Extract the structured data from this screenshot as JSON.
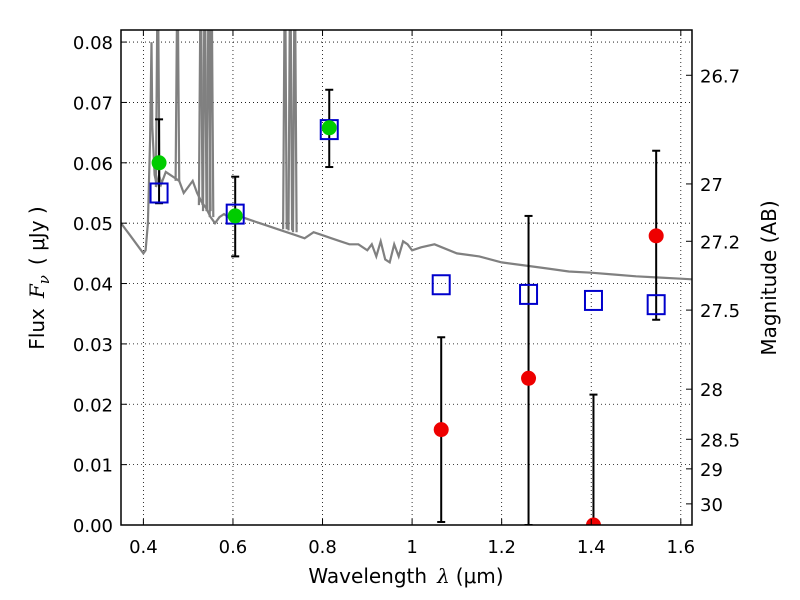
{
  "chart_data": {
    "type": "scatter",
    "xlabel": "Wavelength",
    "xlabel_symbol": "λ",
    "xlabel_unit": "(μm)",
    "ylabel": "Flux",
    "ylabel_symbol": "F",
    "ylabel_subscript": "ν",
    "ylabel_unit": "( μJy )",
    "y2label": "Magnitude (AB)",
    "xlim": [
      0.35,
      1.625
    ],
    "ylim": [
      0.0,
      0.082
    ],
    "x_ticks": [
      0.4,
      0.6,
      0.8,
      1.0,
      1.2,
      1.4,
      1.6
    ],
    "x_tick_labels": [
      "0.4",
      "0.6",
      "0.8",
      "1",
      "1.2",
      "1.4",
      "1.6"
    ],
    "y_ticks": [
      0.0,
      0.01,
      0.02,
      0.03,
      0.04,
      0.05,
      0.06,
      0.07,
      0.08
    ],
    "y_tick_labels": [
      "0.00",
      "0.01",
      "0.02",
      "0.03",
      "0.04",
      "0.05",
      "0.06",
      "0.07",
      "0.08"
    ],
    "y2_ticks": [
      26.7,
      27,
      27.2,
      27.5,
      28,
      28.5,
      29,
      30
    ],
    "y2_tick_labels": [
      "26.7",
      "27",
      "27.2",
      "27.5",
      "28",
      "28.5",
      "29",
      "30"
    ],
    "y2_tick_flux": [
      0.0745,
      0.0565,
      0.047,
      0.0356,
      0.0225,
      0.0142,
      0.0093,
      0.0035
    ],
    "grid": true,
    "series": [
      {
        "kind": "line",
        "color": "#808080",
        "x": [
          0.35,
          0.37,
          0.39,
          0.4,
          0.405,
          0.41,
          0.415,
          0.418,
          0.42,
          0.425,
          0.428,
          0.43,
          0.435,
          0.44,
          0.45,
          0.46,
          0.47,
          0.48,
          0.49,
          0.5,
          0.51,
          0.52,
          0.53,
          0.54,
          0.55,
          0.56,
          0.57,
          0.58,
          0.59,
          0.6,
          0.62,
          0.64,
          0.66,
          0.68,
          0.7,
          0.72,
          0.74,
          0.76,
          0.78,
          0.8,
          0.82,
          0.84,
          0.86,
          0.88,
          0.9,
          0.91,
          0.92,
          0.93,
          0.94,
          0.95,
          0.96,
          0.97,
          0.98,
          0.99,
          1.0,
          1.02,
          1.05,
          1.1,
          1.15,
          1.2,
          1.25,
          1.3,
          1.35,
          1.4,
          1.45,
          1.5,
          1.55,
          1.6,
          1.625
        ],
        "y": [
          0.05,
          0.048,
          0.046,
          0.045,
          0.0455,
          0.05,
          0.064,
          0.08,
          0.066,
          0.058,
          0.057,
          0.0565,
          0.058,
          0.0565,
          0.0585,
          0.058,
          0.0575,
          0.057,
          0.055,
          0.056,
          0.057,
          0.055,
          0.0535,
          0.0525,
          0.051,
          0.05,
          0.051,
          0.0515,
          0.051,
          0.052,
          0.051,
          0.0505,
          0.05,
          0.0495,
          0.049,
          0.0485,
          0.048,
          0.0475,
          0.0485,
          0.048,
          0.0475,
          0.047,
          0.0465,
          0.0465,
          0.0455,
          0.0465,
          0.0445,
          0.047,
          0.044,
          0.0435,
          0.0465,
          0.0445,
          0.047,
          0.0465,
          0.0455,
          0.046,
          0.0465,
          0.045,
          0.0445,
          0.0435,
          0.043,
          0.0425,
          0.042,
          0.0418,
          0.0415,
          0.0412,
          0.041,
          0.0408,
          0.0407
        ]
      },
      {
        "kind": "spikes",
        "color": "#808080",
        "x": [
          0.432,
          0.476,
          0.528,
          0.537,
          0.546,
          0.552,
          0.716,
          0.728,
          0.738
        ],
        "peak": [
          0.082,
          0.082,
          0.082,
          0.082,
          0.082,
          0.082,
          0.082,
          0.082,
          0.082
        ],
        "base": [
          0.056,
          0.057,
          0.053,
          0.052,
          0.052,
          0.051,
          0.049,
          0.0488,
          0.0485
        ]
      },
      {
        "kind": "markers",
        "name": "",
        "marker": "square-open",
        "color": "#0000cc",
        "x": [
          0.435,
          0.605,
          0.815,
          1.065,
          1.26,
          1.405,
          1.545
        ],
        "y": [
          0.055,
          0.0515,
          0.0655,
          0.0398,
          0.0382,
          0.0372,
          0.0365
        ]
      },
      {
        "kind": "markers",
        "name": "",
        "marker": "circle",
        "color": "#00cc00",
        "x": [
          0.435,
          0.605,
          0.815
        ],
        "y": [
          0.06,
          0.0512,
          0.0658
        ],
        "yerr_low": [
          0.0067,
          0.0067,
          0.0065
        ],
        "yerr_high": [
          0.0072,
          0.0065,
          0.0063
        ]
      },
      {
        "kind": "markers",
        "name": "",
        "marker": "circle",
        "color": "#ee0000",
        "x": [
          1.065,
          1.26,
          1.405,
          1.545
        ],
        "y": [
          0.0158,
          0.0243,
          0.0,
          0.0479
        ],
        "yerr_low": [
          0.0153,
          0.0243,
          0.0,
          0.0139
        ],
        "yerr_high": [
          0.0153,
          0.0269,
          0.0216,
          0.0141
        ]
      }
    ]
  }
}
